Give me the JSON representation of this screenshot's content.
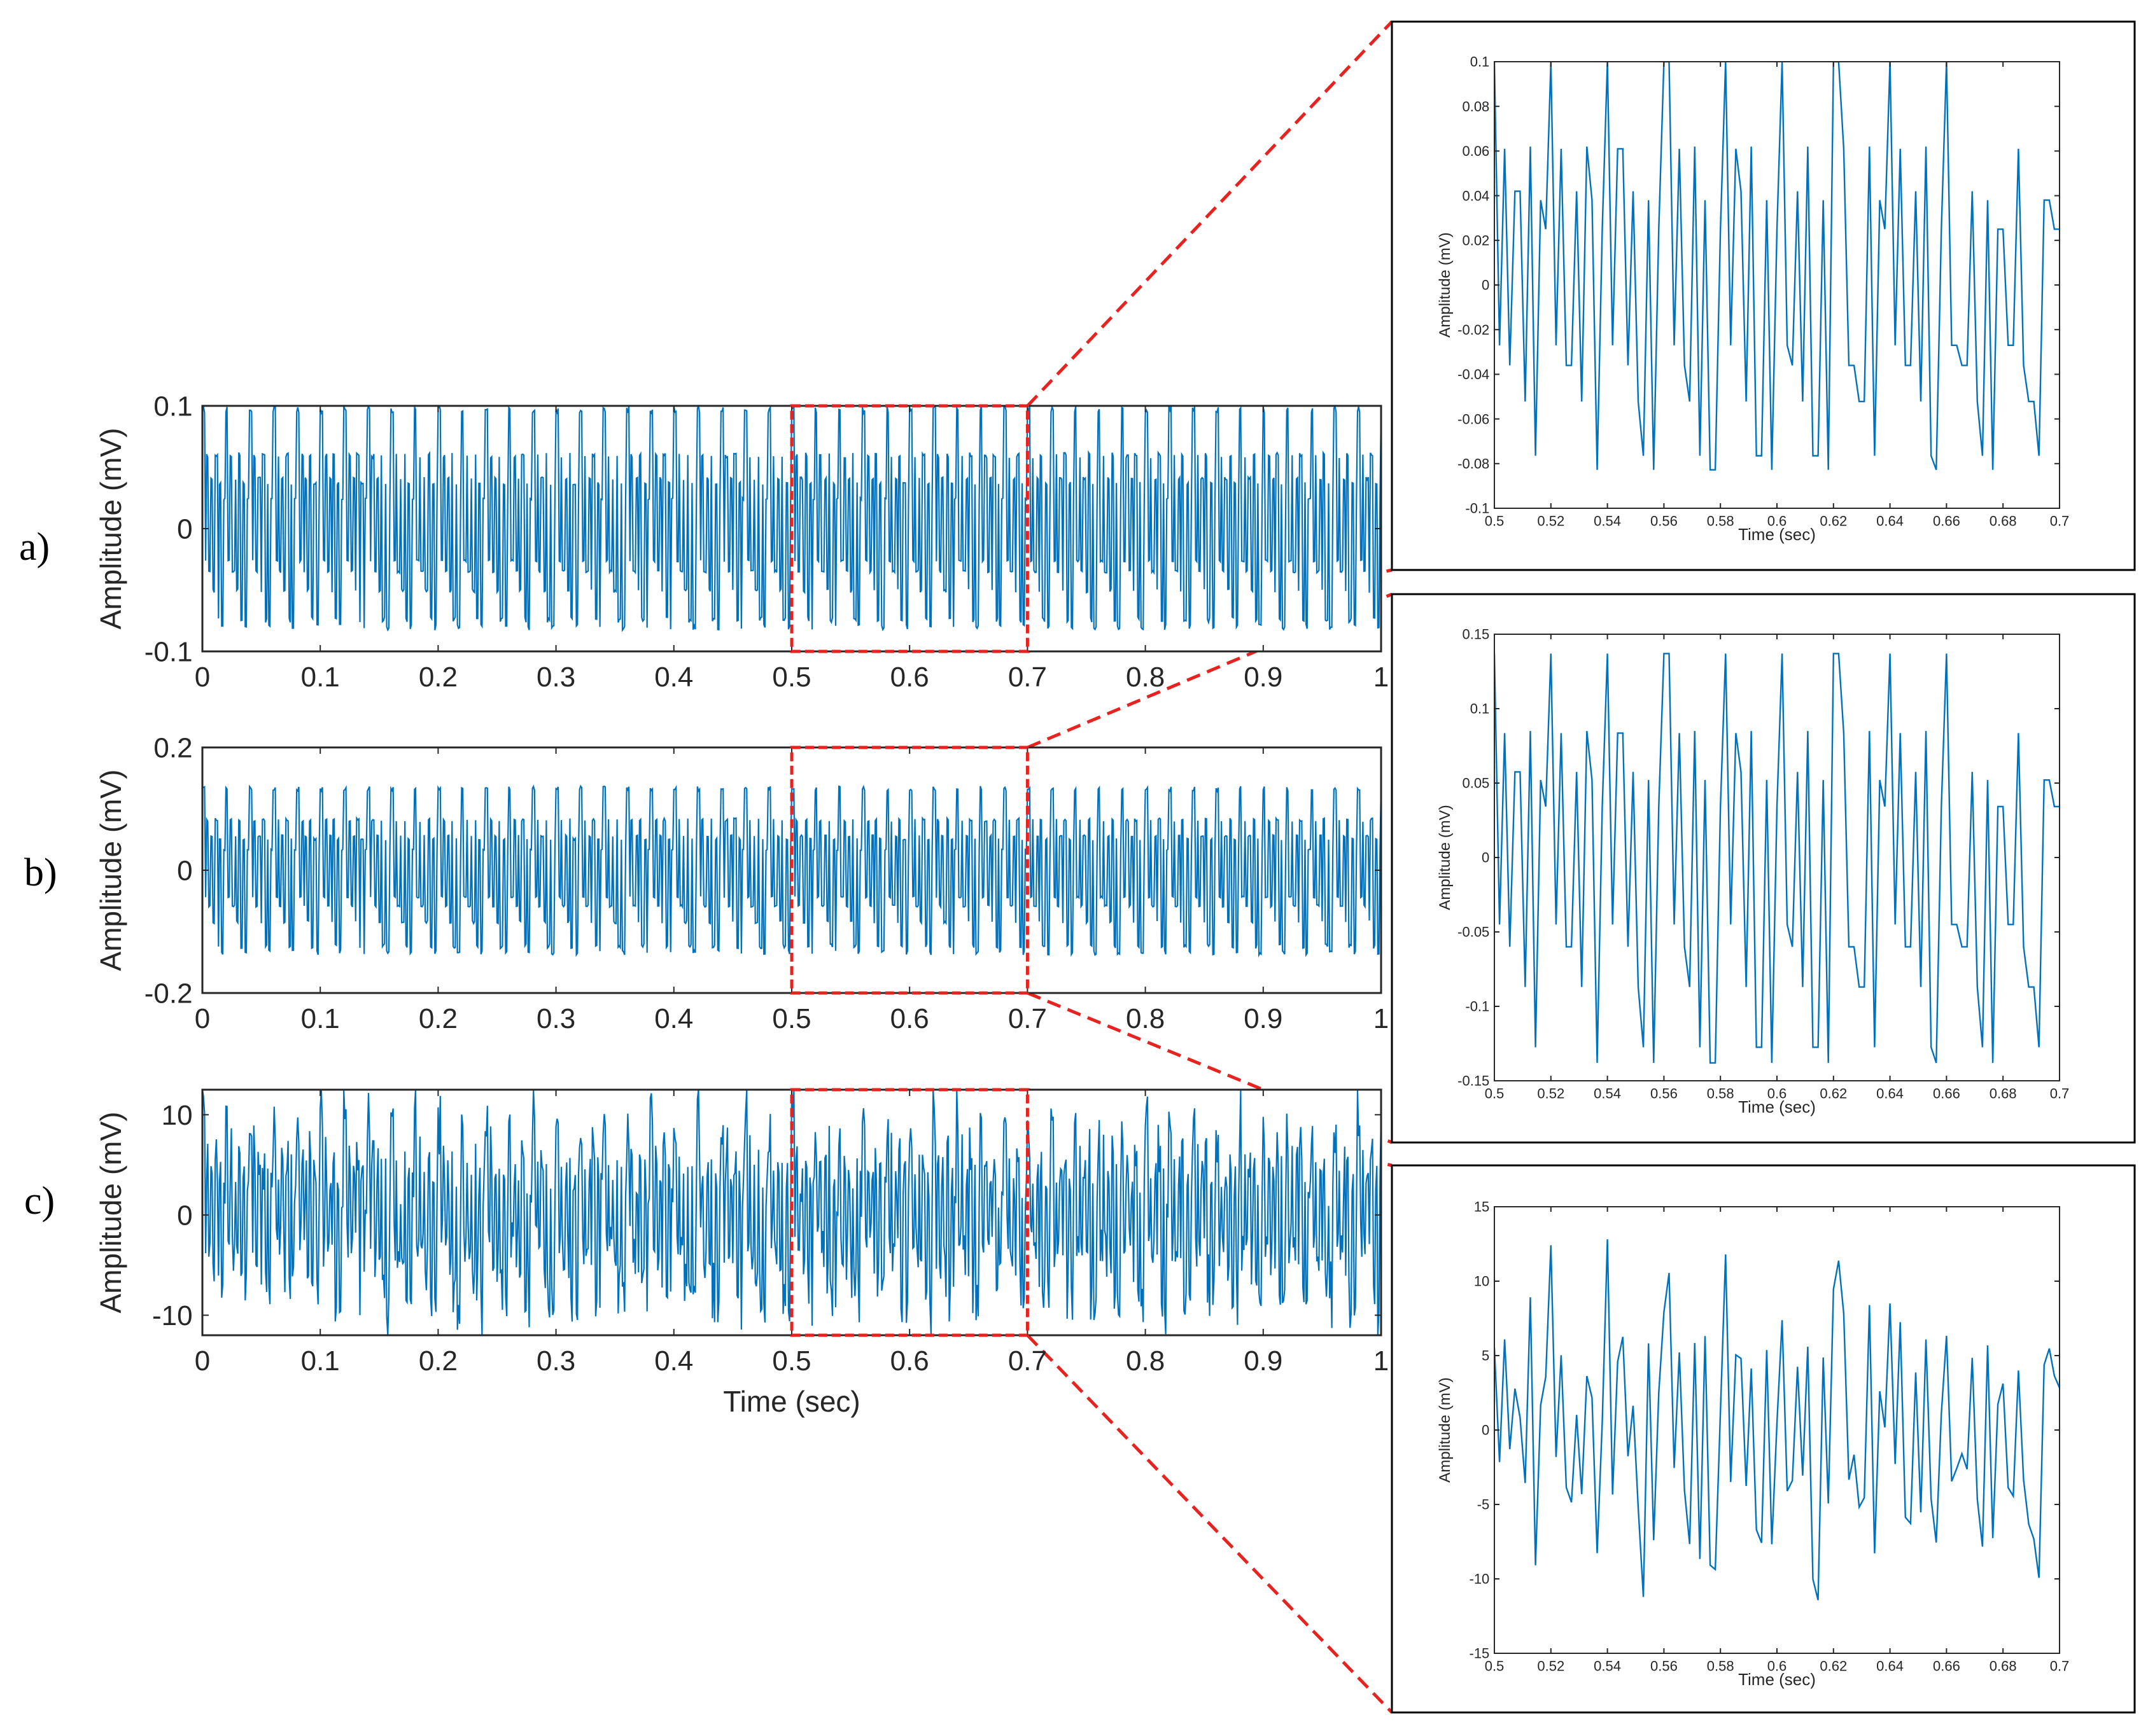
{
  "panel_labels": [
    "a)",
    "b)",
    "c)"
  ],
  "colors": {
    "signal": "#0072BD",
    "zoom_box": "#E8231F",
    "axis": "#262626",
    "frame": "#000000"
  },
  "chart_data": [
    {
      "type": "line",
      "panel": "a)",
      "view": "main",
      "title": "",
      "xlabel": "",
      "ylabel": "Amplitude (mV)",
      "xlim": [
        0,
        1
      ],
      "ylim": [
        -0.1,
        0.1
      ],
      "xticks": [
        0,
        0.1,
        0.2,
        0.3,
        0.4,
        0.5,
        0.6,
        0.7,
        0.8,
        0.9,
        1
      ],
      "xtick_labels": [
        "0",
        "0.1",
        "0.2",
        "0.3",
        "0.4",
        "0.5",
        "0.6",
        "0.7",
        "0.8",
        "0.9",
        "1"
      ],
      "yticks": [
        -0.1,
        0,
        0.1
      ],
      "ytick_labels": [
        "-0.1",
        "0",
        "0.1"
      ],
      "zoom_window": [
        0.5,
        0.7
      ],
      "series": [
        {
          "beat_period_sec": 0.02,
          "peak": 0.1,
          "trough": -0.09
        }
      ]
    },
    {
      "type": "line",
      "panel": "b)",
      "view": "main",
      "title": "",
      "xlabel": "",
      "ylabel": "Amplitude (mV)",
      "xlim": [
        0,
        1
      ],
      "ylim": [
        -0.2,
        0.2
      ],
      "xticks": [
        0,
        0.1,
        0.2,
        0.3,
        0.4,
        0.5,
        0.6,
        0.7,
        0.8,
        0.9,
        1
      ],
      "xtick_labels": [
        "0",
        "0.1",
        "0.2",
        "0.3",
        "0.4",
        "0.5",
        "0.6",
        "0.7",
        "0.8",
        "0.9",
        "1"
      ],
      "yticks": [
        -0.2,
        0,
        0.2
      ],
      "ytick_labels": [
        "-0.2",
        "0",
        "0.2"
      ],
      "zoom_window": [
        0.5,
        0.7
      ],
      "series": [
        {
          "beat_period_sec": 0.02,
          "peak": 0.137,
          "trough": -0.15
        }
      ]
    },
    {
      "type": "line",
      "panel": "c)",
      "view": "main",
      "title": "",
      "xlabel": "Time (sec)",
      "ylabel": "Amplitude (mV)",
      "xlim": [
        0,
        1
      ],
      "ylim": [
        -12,
        12.5
      ],
      "xticks": [
        0,
        0.1,
        0.2,
        0.3,
        0.4,
        0.5,
        0.6,
        0.7,
        0.8,
        0.9,
        1
      ],
      "xtick_labels": [
        "0",
        "0.1",
        "0.2",
        "0.3",
        "0.4",
        "0.5",
        "0.6",
        "0.7",
        "0.8",
        "0.9",
        "1"
      ],
      "yticks": [
        -10,
        0,
        10
      ],
      "ytick_labels": [
        "-10",
        "0",
        "10"
      ],
      "zoom_window": [
        0.5,
        0.7
      ],
      "series": [
        {
          "beat_period_sec": 0.02,
          "peak": 12.3,
          "trough": -11.8
        }
      ]
    },
    {
      "type": "line",
      "panel": "a)",
      "view": "zoom",
      "title": "",
      "xlabel": "Time (sec)",
      "ylabel": "Amplitude (mV)",
      "xlim": [
        0.5,
        0.7
      ],
      "ylim": [
        -0.1,
        0.1
      ],
      "xticks": [
        0.5,
        0.52,
        0.54,
        0.56,
        0.58,
        0.6,
        0.62,
        0.64,
        0.66,
        0.68,
        0.7
      ],
      "xtick_labels": [
        "0.5",
        "0.52",
        "0.54",
        "0.56",
        "0.58",
        "0.6",
        "0.62",
        "0.64",
        "0.66",
        "0.68",
        "0.7"
      ],
      "yticks": [
        -0.1,
        -0.08,
        -0.06,
        -0.04,
        -0.02,
        0,
        0.02,
        0.04,
        0.06,
        0.08,
        0.1
      ],
      "ytick_labels": [
        "-0.1",
        "-0.08",
        "-0.06",
        "-0.04",
        "-0.02",
        "0",
        "0.02",
        "0.04",
        "0.06",
        "0.08",
        "0.1"
      ],
      "series": [
        {
          "beat_period_sec": 0.02,
          "peak": 0.1,
          "trough": -0.09
        }
      ]
    },
    {
      "type": "line",
      "panel": "b)",
      "view": "zoom",
      "title": "",
      "xlabel": "Time (sec)",
      "ylabel": "Amplitude (mV)",
      "xlim": [
        0.5,
        0.7
      ],
      "ylim": [
        -0.15,
        0.15
      ],
      "xticks": [
        0.5,
        0.52,
        0.54,
        0.56,
        0.58,
        0.6,
        0.62,
        0.64,
        0.66,
        0.68,
        0.7
      ],
      "xtick_labels": [
        "0.5",
        "0.52",
        "0.54",
        "0.56",
        "0.58",
        "0.6",
        "0.62",
        "0.64",
        "0.66",
        "0.68",
        "0.7"
      ],
      "yticks": [
        -0.15,
        -0.1,
        -0.05,
        0,
        0.05,
        0.1,
        0.15
      ],
      "ytick_labels": [
        "-0.15",
        "-0.1",
        "-0.05",
        "0",
        "0.05",
        "0.1",
        "0.15"
      ],
      "series": [
        {
          "beat_period_sec": 0.02,
          "peak": 0.137,
          "trough": -0.15
        }
      ]
    },
    {
      "type": "line",
      "panel": "c)",
      "view": "zoom",
      "title": "",
      "xlabel": "Time (sec)",
      "ylabel": "Amplitude (mV)",
      "xlim": [
        0.5,
        0.7
      ],
      "ylim": [
        -15,
        15
      ],
      "xticks": [
        0.5,
        0.52,
        0.54,
        0.56,
        0.58,
        0.6,
        0.62,
        0.64,
        0.66,
        0.68,
        0.7
      ],
      "xtick_labels": [
        "0.5",
        "0.52",
        "0.54",
        "0.56",
        "0.58",
        "0.6",
        "0.62",
        "0.64",
        "0.66",
        "0.68",
        "0.7"
      ],
      "yticks": [
        -15,
        -10,
        -5,
        0,
        5,
        10,
        15
      ],
      "ytick_labels": [
        "-15",
        "-10",
        "-5",
        "0",
        "5",
        "10",
        "15"
      ],
      "series": [
        {
          "beat_period_sec": 0.02,
          "peak": 12.3,
          "trough": -11.8
        }
      ]
    }
  ]
}
